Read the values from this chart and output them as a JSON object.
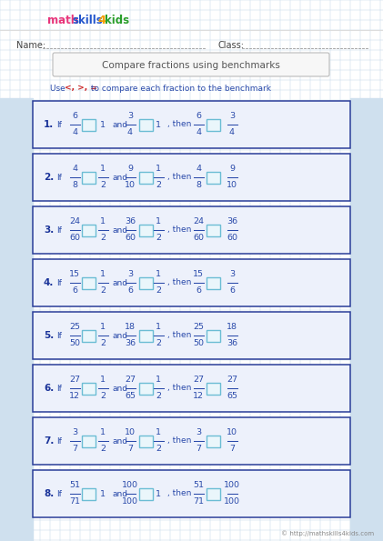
{
  "title": "Compare fractions using benchmarks",
  "instruction_pre": "Use ",
  "instruction_symbols": "<, >, =",
  "instruction_post": " to compare each fraction to the benchmark",
  "name_label": "Name:",
  "class_label": "Class:",
  "copyright": "© http://mathskills4kids.com",
  "problems": [
    {
      "num": "1.",
      "if_frac": [
        "6",
        "4"
      ],
      "benchmark1": "1",
      "and_frac": [
        "3",
        "4"
      ],
      "benchmark2": "1",
      "then_frac1": [
        "6",
        "4"
      ],
      "then_frac2": [
        "3",
        "4"
      ]
    },
    {
      "num": "2.",
      "if_frac": [
        "4",
        "8"
      ],
      "benchmark1": "1/2",
      "and_frac": [
        "9",
        "10"
      ],
      "benchmark2": "1/2",
      "then_frac1": [
        "4",
        "8"
      ],
      "then_frac2": [
        "9",
        "10"
      ]
    },
    {
      "num": "3.",
      "if_frac": [
        "24",
        "60"
      ],
      "benchmark1": "1/2",
      "and_frac": [
        "36",
        "60"
      ],
      "benchmark2": "1/2",
      "then_frac1": [
        "24",
        "60"
      ],
      "then_frac2": [
        "36",
        "60"
      ]
    },
    {
      "num": "4.",
      "if_frac": [
        "15",
        "6"
      ],
      "benchmark1": "1/2",
      "and_frac": [
        "3",
        "6"
      ],
      "benchmark2": "1/2",
      "then_frac1": [
        "15",
        "6"
      ],
      "then_frac2": [
        "3",
        "6"
      ]
    },
    {
      "num": "5.",
      "if_frac": [
        "25",
        "50"
      ],
      "benchmark1": "1/2",
      "and_frac": [
        "18",
        "36"
      ],
      "benchmark2": "1/2",
      "then_frac1": [
        "25",
        "50"
      ],
      "then_frac2": [
        "18",
        "36"
      ]
    },
    {
      "num": "6.",
      "if_frac": [
        "27",
        "12"
      ],
      "benchmark1": "1/2",
      "and_frac": [
        "27",
        "65"
      ],
      "benchmark2": "1/2",
      "then_frac1": [
        "27",
        "12"
      ],
      "then_frac2": [
        "27",
        "65"
      ]
    },
    {
      "num": "7.",
      "if_frac": [
        "3",
        "7"
      ],
      "benchmark1": "1/2",
      "and_frac": [
        "10",
        "7"
      ],
      "benchmark2": "1/2",
      "then_frac1": [
        "3",
        "7"
      ],
      "then_frac2": [
        "10",
        "7"
      ]
    },
    {
      "num": "8.",
      "if_frac": [
        "51",
        "71"
      ],
      "benchmark1": "1",
      "and_frac": [
        "100",
        "100"
      ],
      "benchmark2": "1",
      "then_frac1": [
        "51",
        "71"
      ],
      "then_frac2": [
        "100",
        "100"
      ]
    }
  ],
  "bg_color": "#ffffff",
  "grid_color": "#c5d9ea",
  "side_panel_color": "#cfe0ee",
  "box_border_color": "#2a3d99",
  "box_fill_color": "#edf1fb",
  "answer_box_stroke": "#6bbdd4",
  "answer_box_fill": "#eaf6fb",
  "title_box_edge": "#bbbbbb",
  "title_box_fill": "#f7f7f7",
  "number_color": "#1a3399",
  "text_color": "#2a4aaa",
  "instruction_color": "#2a4aaa",
  "symbol_color": "#cc2222",
  "logo_math_color": "#e8357a",
  "logo_skills_color": "#2255cc",
  "logo_4_color": "#f5a000",
  "logo_kids_color": "#2a9e2a",
  "name_class_color": "#444444",
  "dotted_line_color": "#999999",
  "copyright_color": "#888888"
}
